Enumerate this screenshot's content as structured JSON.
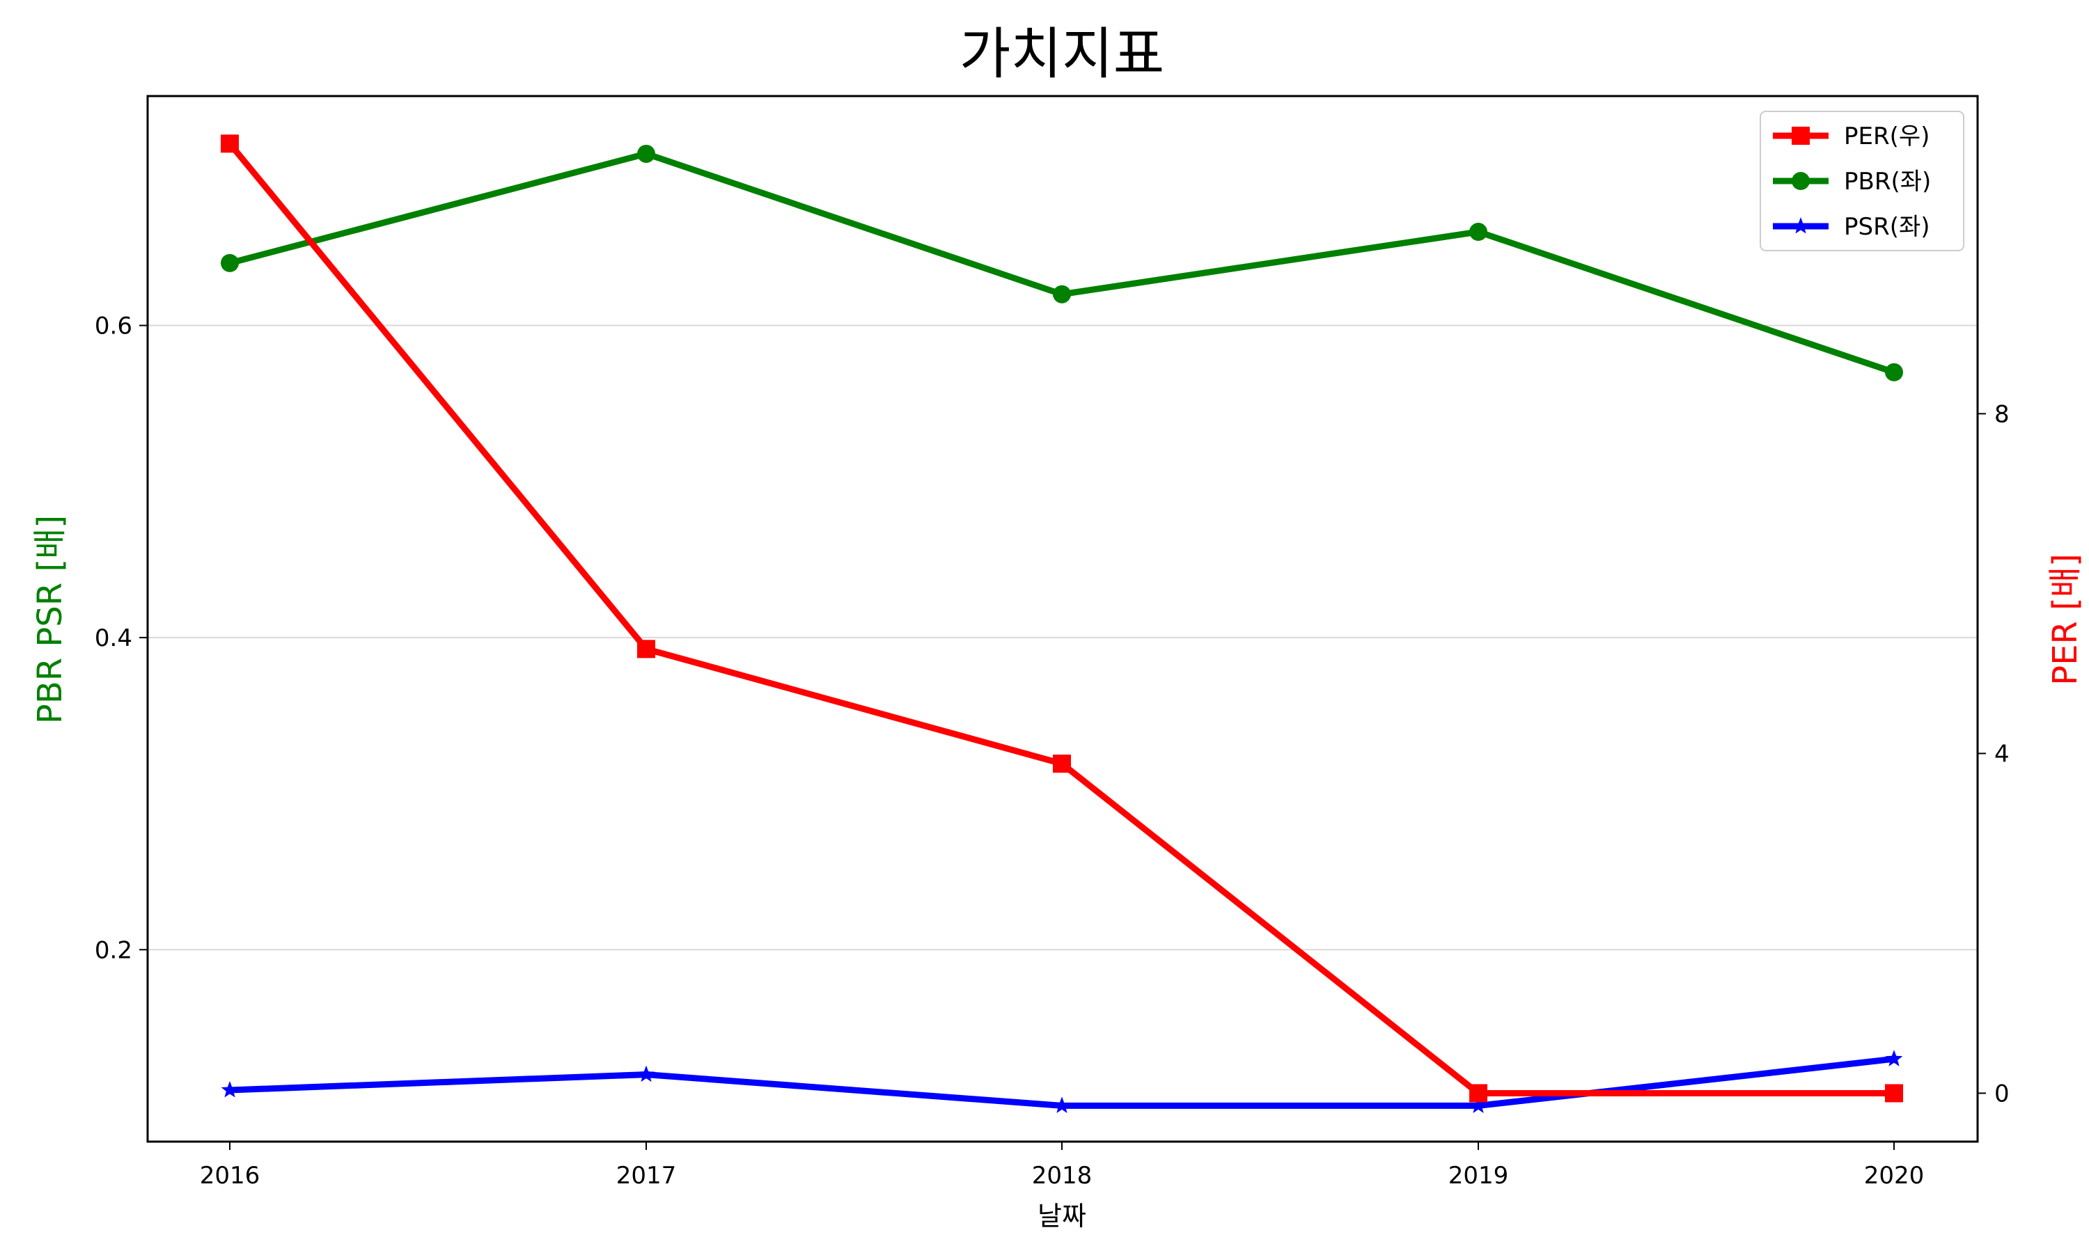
{
  "chart_data": {
    "type": "line",
    "title": "가치지표",
    "xlabel": "날짜",
    "ylabel_left": "PBR PSR [배]",
    "ylabel_right": "PER [배]",
    "categories": [
      "2016",
      "2017",
      "2018",
      "2019",
      "2020"
    ],
    "y_left": {
      "lim": [
        0.077,
        0.747
      ],
      "ticks": [
        0.2,
        0.4,
        0.6
      ],
      "tick_labels": [
        "0.2",
        "0.4",
        "0.6"
      ],
      "grid": true
    },
    "y_right": {
      "lim": [
        -0.57,
        11.74
      ],
      "ticks": [
        0,
        4,
        8
      ],
      "tick_labels": [
        "0",
        "4",
        "8"
      ]
    },
    "series": [
      {
        "name": "PER(우)",
        "axis": "right",
        "color": "#ff0000",
        "marker": "square",
        "values": [
          11.18,
          5.23,
          3.88,
          0.0,
          0.0
        ]
      },
      {
        "name": "PBR(좌)",
        "axis": "left",
        "color": "#008000",
        "marker": "circle",
        "values": [
          0.64,
          0.71,
          0.62,
          0.66,
          0.57
        ]
      },
      {
        "name": "PSR(좌)",
        "axis": "left",
        "color": "#0000ff",
        "marker": "star",
        "values": [
          0.11,
          0.12,
          0.1,
          0.1,
          0.13
        ]
      }
    ],
    "legend_position": "top-right"
  }
}
